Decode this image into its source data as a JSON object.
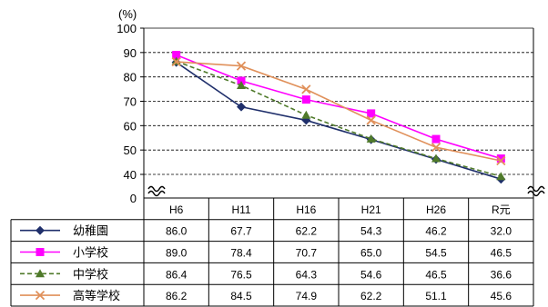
{
  "chart_data": {
    "type": "line",
    "unit_label": "(%)",
    "categories": [
      "H6",
      "H11",
      "H16",
      "H21",
      "H26",
      "R元"
    ],
    "ylim": [
      0,
      100
    ],
    "yticks": [
      0,
      40,
      50,
      60,
      70,
      80,
      90,
      100
    ],
    "axis_break": true,
    "grid": "horizontal dashed",
    "legend": "data table below chart",
    "series": [
      {
        "name": "幼稚園",
        "values": [
          86.0,
          67.7,
          62.2,
          54.3,
          46.2,
          32.0
        ],
        "labels": [
          "86.0",
          "67.7",
          "62.2",
          "54.3",
          "46.2",
          "32.0"
        ],
        "color": "#1f2f6b",
        "marker": "diamond",
        "dash": "solid"
      },
      {
        "name": "小学校",
        "values": [
          89.0,
          78.4,
          70.7,
          65.0,
          54.5,
          46.5
        ],
        "labels": [
          "89.0",
          "78.4",
          "70.7",
          "65.0",
          "54.5",
          "46.5"
        ],
        "color": "#ff00ff",
        "marker": "square",
        "dash": "solid"
      },
      {
        "name": "中学校",
        "values": [
          86.4,
          76.5,
          64.3,
          54.6,
          46.5,
          36.6
        ],
        "labels": [
          "86.4",
          "76.5",
          "64.3",
          "54.6",
          "46.5",
          "36.6"
        ],
        "color": "#4f7a2a",
        "marker": "triangle",
        "dash": "dashed"
      },
      {
        "name": "高等学校",
        "values": [
          86.2,
          84.5,
          74.9,
          62.2,
          51.1,
          45.6
        ],
        "labels": [
          "86.2",
          "84.5",
          "74.9",
          "62.2",
          "51.1",
          "45.6"
        ],
        "color": "#e0905a",
        "marker": "x",
        "dash": "solid"
      }
    ]
  }
}
